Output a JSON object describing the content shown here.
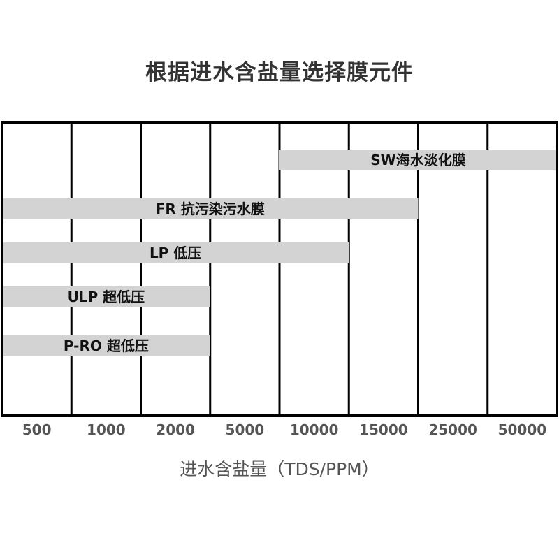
{
  "chart_data": {
    "type": "bar",
    "orientation": "horizontal-range",
    "title": "根据进水含盐量选择膜元件",
    "xlabel": "进水含盐量（TDS/PPM）",
    "ylabel": "",
    "categories": [
      "500",
      "1000",
      "2000",
      "5000",
      "10000",
      "15000",
      "25000",
      "50000"
    ],
    "bars": [
      {
        "label": "SW海水淡化膜",
        "from": "10000",
        "to": "50000"
      },
      {
        "label": "FR 抗污染污水膜",
        "from": "500",
        "to": "15000"
      },
      {
        "label": "LP 低压",
        "from": "500",
        "to": "10000"
      },
      {
        "label": "ULP 超低压",
        "from": "500",
        "to": "2000"
      },
      {
        "label": "P-RO 超低压",
        "from": "500",
        "to": "2000"
      }
    ],
    "grid": true,
    "colors": {
      "bar": "#d3d3d3",
      "grid": "#000000",
      "tick_text": "#555555",
      "title": "#333333"
    }
  }
}
